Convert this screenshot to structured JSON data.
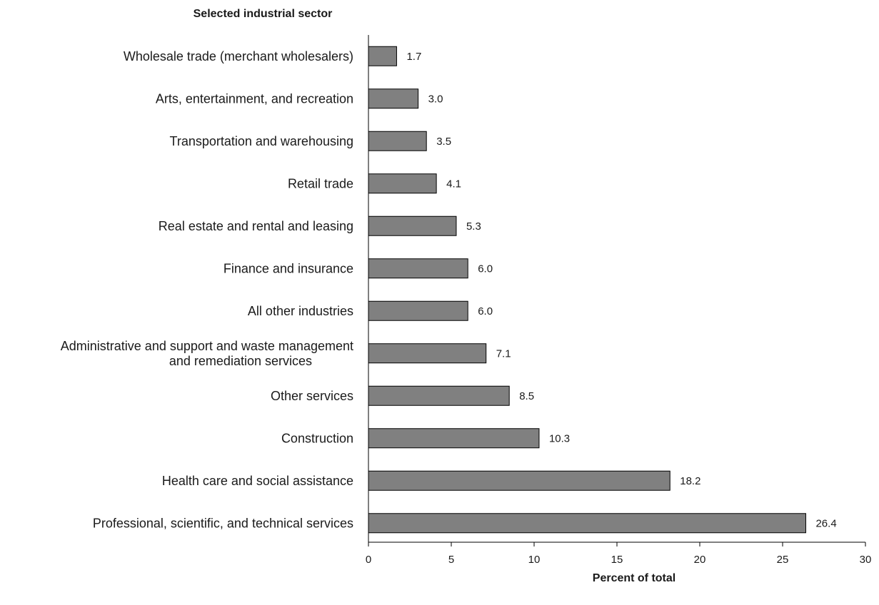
{
  "chart_data": {
    "type": "bar",
    "orientation": "horizontal",
    "ylabel": "Selected industrial sector",
    "xlabel": "Percent of total",
    "xlim": [
      0,
      30
    ],
    "xticks": [
      0,
      5,
      10,
      15,
      20,
      25,
      30
    ],
    "bar_color": "#808080",
    "bar_outline_color": "#000000",
    "grid": false,
    "categories": [
      [
        "Wholesale trade (merchant wholesalers)"
      ],
      [
        "Arts, entertainment, and recreation"
      ],
      [
        "Transportation and warehousing"
      ],
      [
        "Retail trade"
      ],
      [
        "Real estate and rental and leasing"
      ],
      [
        "Finance and insurance"
      ],
      [
        "All other industries"
      ],
      [
        "Administrative and support and waste management",
        "and remediation services"
      ],
      [
        "Other services"
      ],
      [
        "Construction"
      ],
      [
        "Health care and social assistance"
      ],
      [
        "Professional, scientific, and technical services"
      ]
    ],
    "values": [
      1.7,
      3.0,
      3.5,
      4.1,
      5.3,
      6.0,
      6.0,
      7.1,
      8.5,
      10.3,
      18.2,
      26.4
    ],
    "value_labels": [
      "1.7",
      "3.0",
      "3.5",
      "4.1",
      "5.3",
      "6.0",
      "6.0",
      "7.1",
      "8.5",
      "10.3",
      "18.2",
      "26.4"
    ]
  }
}
